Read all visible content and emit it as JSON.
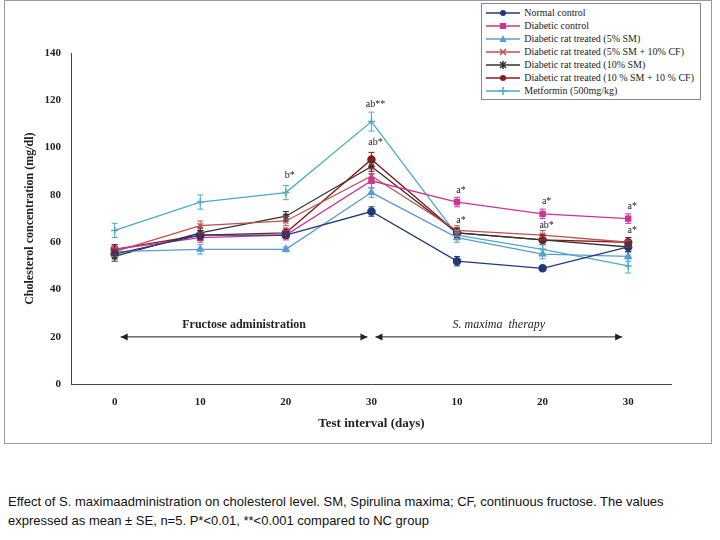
{
  "chart_data": {
    "type": "line",
    "x_label": "Test interval (days)",
    "y_label": "Cholesterol concentration (mg/dl)",
    "categories": [
      "0",
      "10",
      "20",
      "30",
      "10",
      "20",
      "30"
    ],
    "ylim": [
      0,
      140
    ],
    "yticks": [
      0,
      20,
      40,
      60,
      80,
      100,
      120,
      140
    ],
    "grid": false,
    "legend": "top-right",
    "series": [
      {
        "name": "Normal control",
        "color": "#1f3a7a",
        "marker": "circle",
        "values": [
          55,
          63,
          63,
          73,
          52,
          49,
          58
        ],
        "errors": [
          2,
          2,
          1,
          2,
          2,
          1,
          2
        ]
      },
      {
        "name": "Diabetic control",
        "color": "#cc3399",
        "marker": "square",
        "values": [
          57,
          62,
          63,
          86,
          77,
          72,
          70
        ],
        "errors": [
          2,
          2,
          2,
          3,
          2,
          2,
          2
        ]
      },
      {
        "name": "Diabetic rat treated (5% SM)",
        "color": "#5b9bd5",
        "marker": "triangle",
        "values": [
          56,
          57,
          57,
          81,
          62,
          55,
          54
        ],
        "errors": [
          2,
          2,
          1,
          2,
          2,
          2,
          2
        ]
      },
      {
        "name": "Diabetic rat treated  (5% SM + 10% CF)",
        "color": "#c0504d",
        "marker": "x",
        "values": [
          56,
          67,
          69,
          88,
          65,
          63,
          60
        ],
        "errors": [
          2,
          2,
          2,
          3,
          2,
          2,
          2
        ]
      },
      {
        "name": "Diabetic rat treated  (10% SM)",
        "color": "#333333",
        "marker": "star",
        "values": [
          54,
          64,
          71,
          92,
          64,
          61,
          58
        ],
        "errors": [
          2,
          2,
          2,
          2,
          2,
          2,
          2
        ]
      },
      {
        "name": "Diabetic rat treated  (10 % SM + 10 % CF)",
        "color": "#8b1a1a",
        "marker": "circle",
        "values": [
          57,
          63,
          64,
          95,
          64,
          61,
          60
        ],
        "errors": [
          2,
          2,
          2,
          3,
          2,
          2,
          2
        ]
      },
      {
        "name": "Metformin (500mg/kg)",
        "color": "#4bacc6",
        "marker": "plus",
        "values": [
          65,
          77,
          81,
          111,
          63,
          57,
          50
        ],
        "errors": [
          3,
          3,
          3,
          4,
          2,
          2,
          3
        ]
      }
    ],
    "annotations": [
      {
        "text": "ab**",
        "x": 3,
        "y": 116
      },
      {
        "text": "b*",
        "x": 2,
        "y": 86
      },
      {
        "text": "ab*",
        "x": 3,
        "y": 100
      },
      {
        "text": "a*",
        "x": 4,
        "y": 80
      },
      {
        "text": "a*",
        "x": 5,
        "y": 75
      },
      {
        "text": "a*",
        "x": 6,
        "y": 73
      },
      {
        "text": "a*",
        "x": 4,
        "y": 67
      },
      {
        "text": "ab*",
        "x": 5,
        "y": 65
      },
      {
        "text": "a*",
        "x": 6,
        "y": 63
      }
    ],
    "phases": [
      {
        "text": "Fructose administration",
        "from": 0,
        "to": 3,
        "y": 20
      },
      {
        "text": "S. maxima  therapy",
        "from": 3,
        "to": 6,
        "y": 20
      }
    ],
    "caption": "Effect of S. maximaadministration on cholesterol level. SM, Spirulina maxima; CF, continuous fructose. The values expressed as mean ± SE, n=5. P*<0.01, **<0.001 compared to NC group"
  }
}
